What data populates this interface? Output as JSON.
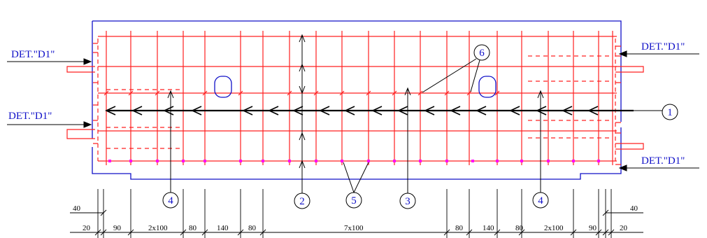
{
  "colors": {
    "outline": "#1010c8",
    "rebar": "#ff2020",
    "arrow": "#000000",
    "marker": "#ff00ff",
    "label": "#1010c8",
    "dimension": "#000000"
  },
  "detail_labels": {
    "top_left": "DET.\"D1\"",
    "mid_left": "DET.\"D1\"",
    "top_right": "DET.\"D1\"",
    "bottom_right": "DET.\"D1\""
  },
  "callouts": {
    "c1": "1",
    "c2": "2",
    "c3": "3",
    "c4_left": "4",
    "c4_right": "4",
    "c5": "5",
    "c6": "6"
  },
  "dimensions": {
    "top_left": "40",
    "top_right": "40",
    "bottom": [
      "20",
      "90",
      "2x100",
      "80",
      "140",
      "80",
      "7x100",
      "80",
      "140",
      "80",
      "2x100",
      "90",
      "20"
    ]
  }
}
